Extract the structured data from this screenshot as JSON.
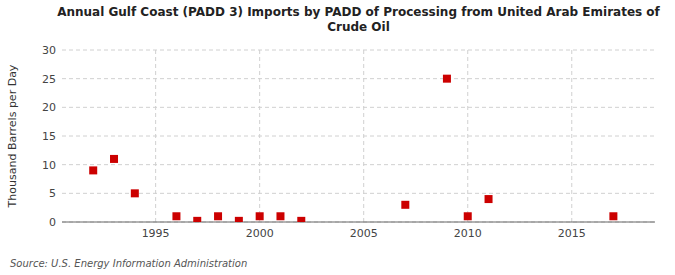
{
  "chart_data": {
    "type": "scatter",
    "title": "Annual Gulf Coast (PADD 3) Imports by PADD of Processing from United Arab Emirates of\nCrude Oil",
    "ylabel": "Thousand Barrels per Day",
    "annotations": [
      "Source: U.S. Energy Information Administration"
    ],
    "x": [
      1992,
      1993,
      1994,
      1996,
      1997,
      1998,
      1999,
      2000,
      2001,
      2002,
      2007,
      2009,
      2010,
      2011,
      2017
    ],
    "values": [
      9,
      11,
      5,
      1,
      0.2,
      1,
      0.2,
      1,
      1,
      0.2,
      3,
      25,
      1,
      4,
      1
    ],
    "color": "#cc0000",
    "marker": "square",
    "xlim": [
      1990.5,
      2019
    ],
    "ylim": [
      0,
      30
    ],
    "xticks": [
      1995,
      2000,
      2005,
      2010,
      2015
    ],
    "yticks": [
      0,
      5,
      10,
      15,
      20,
      25,
      30
    ],
    "grid": true
  }
}
